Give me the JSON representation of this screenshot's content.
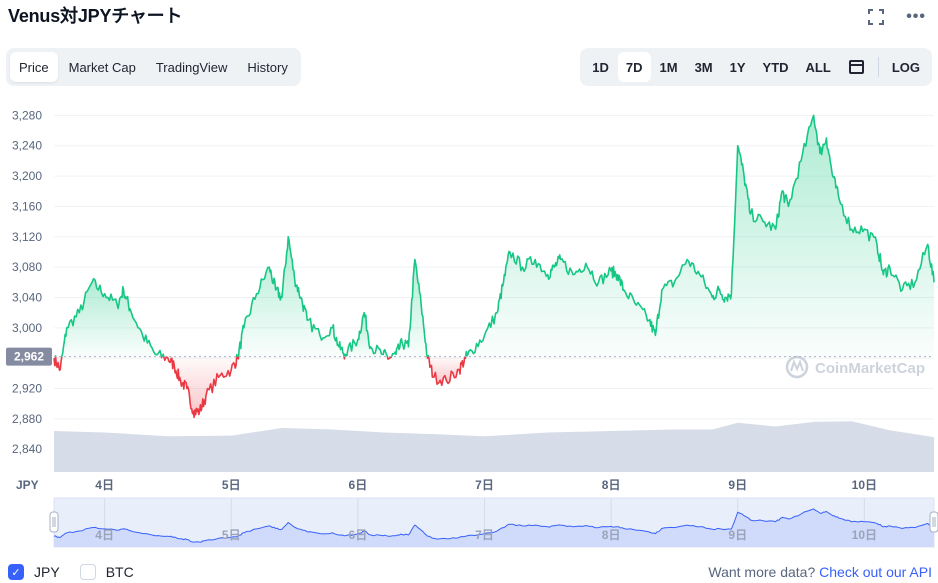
{
  "header": {
    "title": "Venus対JPYチャート"
  },
  "tabs": [
    {
      "label": "Price",
      "active": true
    },
    {
      "label": "Market Cap",
      "active": false
    },
    {
      "label": "TradingView",
      "active": false
    },
    {
      "label": "History",
      "active": false
    }
  ],
  "ranges": [
    {
      "label": "1D",
      "active": false
    },
    {
      "label": "7D",
      "active": true
    },
    {
      "label": "1M",
      "active": false
    },
    {
      "label": "3M",
      "active": false
    },
    {
      "label": "1Y",
      "active": false
    },
    {
      "label": "YTD",
      "active": false
    },
    {
      "label": "ALL",
      "active": false
    }
  ],
  "log_label": "LOG",
  "watermark": "CoinMarketCap",
  "currency_label": "JPY",
  "footer": {
    "options": [
      {
        "label": "JPY",
        "checked": true
      },
      {
        "label": "BTC",
        "checked": false
      }
    ],
    "api_text": "Want more data?",
    "api_link": "Check out our API"
  },
  "colors": {
    "up": "#16c784",
    "down": "#ea3943",
    "accent": "#3861fb",
    "volume": "#cfd6e4"
  },
  "chart_data": {
    "type": "line",
    "reference_value": 2962,
    "reference_label": "2,962",
    "ylim": [
      2810,
      3295
    ],
    "yticks": [
      2840,
      2880,
      2920,
      2960,
      3000,
      3040,
      3080,
      3120,
      3160,
      3200,
      3240,
      3280
    ],
    "ytick_labels": [
      "2,840",
      "2,880",
      "2,920",
      "2,960",
      "3,000",
      "3,040",
      "3,080",
      "3,120",
      "3,160",
      "3,200",
      "3,240",
      "3,280"
    ],
    "xlim": [
      3.6,
      10.55
    ],
    "xticks": [
      4,
      5,
      6,
      7,
      8,
      9,
      10
    ],
    "xtick_labels": [
      "4日",
      "5日",
      "6日",
      "7日",
      "8日",
      "9日",
      "10日"
    ],
    "price": {
      "x": [
        3.6,
        3.65,
        3.7,
        3.8,
        3.9,
        4.0,
        4.1,
        4.15,
        4.2,
        4.3,
        4.4,
        4.5,
        4.55,
        4.6,
        4.65,
        4.7,
        4.75,
        4.8,
        4.9,
        5.0,
        5.05,
        5.1,
        5.2,
        5.3,
        5.35,
        5.4,
        5.45,
        5.5,
        5.55,
        5.6,
        5.7,
        5.8,
        5.85,
        5.9,
        6.0,
        6.05,
        6.1,
        6.2,
        6.25,
        6.3,
        6.35,
        6.4,
        6.45,
        6.5,
        6.55,
        6.6,
        6.7,
        6.8,
        6.85,
        6.9,
        7.0,
        7.1,
        7.15,
        7.2,
        7.3,
        7.4,
        7.5,
        7.55,
        7.6,
        7.7,
        7.8,
        7.9,
        8.0,
        8.05,
        8.1,
        8.2,
        8.3,
        8.35,
        8.4,
        8.5,
        8.6,
        8.7,
        8.8,
        8.85,
        8.9,
        8.95,
        9.0,
        9.05,
        9.1,
        9.2,
        9.3,
        9.35,
        9.4,
        9.5,
        9.6,
        9.65,
        9.7,
        9.75,
        9.8,
        9.9,
        10.0,
        10.1,
        10.15,
        10.2,
        10.3,
        10.4,
        10.5,
        10.55
      ],
      "y": [
        2960,
        2945,
        3000,
        3020,
        3060,
        3045,
        3030,
        3050,
        3025,
        2990,
        2965,
        2960,
        2950,
        2930,
        2920,
        2890,
        2890,
        2910,
        2935,
        2945,
        2960,
        3000,
        3045,
        3080,
        3050,
        3040,
        3120,
        3065,
        3040,
        3010,
        2990,
        3000,
        2975,
        2965,
        2985,
        3020,
        2975,
        2965,
        2960,
        2965,
        2980,
        2975,
        3090,
        3030,
        2960,
        2935,
        2930,
        2945,
        2960,
        2970,
        2990,
        3020,
        3060,
        3100,
        3080,
        3090,
        3070,
        3080,
        3090,
        3070,
        3085,
        3060,
        3075,
        3070,
        3050,
        3030,
        3010,
        2990,
        3050,
        3060,
        3090,
        3070,
        3040,
        3050,
        3040,
        3045,
        3240,
        3200,
        3150,
        3140,
        3130,
        3180,
        3160,
        3220,
        3280,
        3230,
        3250,
        3200,
        3170,
        3130,
        3130,
        3110,
        3070,
        3080,
        3050,
        3060,
        3110,
        3060
      ]
    },
    "volume": {
      "x": [
        3.6,
        4.0,
        4.5,
        5.0,
        5.4,
        5.8,
        6.2,
        6.6,
        7.0,
        7.5,
        8.0,
        8.5,
        8.8,
        9.0,
        9.3,
        9.6,
        9.9,
        10.2,
        10.55
      ],
      "y": [
        2864,
        2862,
        2857,
        2858,
        2868,
        2866,
        2862,
        2860,
        2857,
        2862,
        2864,
        2866,
        2866,
        2875,
        2870,
        2876,
        2877,
        2865,
        2856
      ]
    },
    "navigator": {
      "xtick_labels": [
        "4日",
        "5日",
        "6日",
        "7日",
        "8日",
        "9日",
        "10日"
      ]
    }
  }
}
